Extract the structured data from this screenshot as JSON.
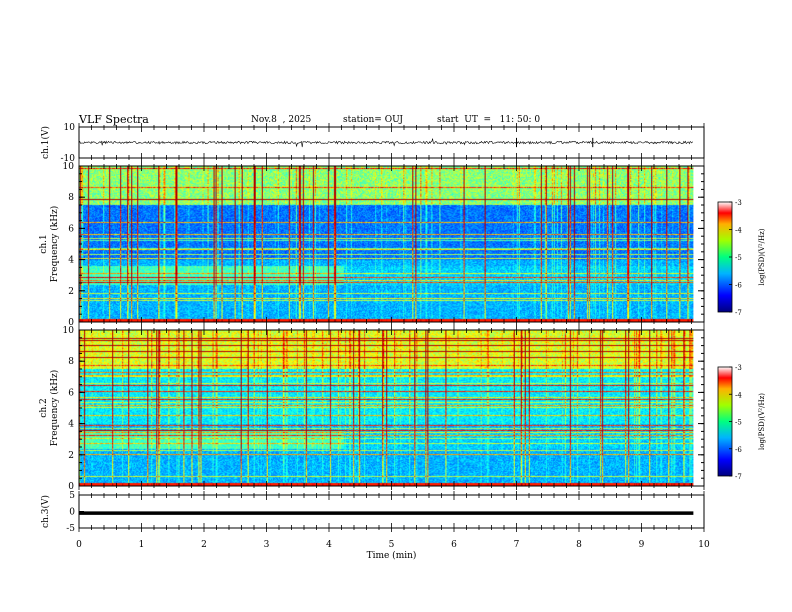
{
  "header": {
    "title": "VLF Spectra",
    "date": "Nov.8  , 2025",
    "station": "station= OUJ",
    "start": "start  UT  =   11: 50: 0"
  },
  "chart_data": [
    {
      "type": "line",
      "name": "ch1-waveform",
      "ylabel": "ch.1(V)",
      "ylim": [
        -10,
        10
      ],
      "yticks": [
        "10",
        "-10"
      ],
      "baseline": 0,
      "series": [
        {
          "name": "ch.1",
          "description": "noisy waveform near 0 V with spikes near 7.0, 8.2 min"
        }
      ]
    },
    {
      "type": "heatmap",
      "name": "ch1-spectrogram",
      "ylabel_top": "ch.1",
      "ylabel": "Frequency (kHz)",
      "ylim": [
        0,
        10
      ],
      "yticks": [
        "0",
        "2",
        "4",
        "6",
        "8",
        "10"
      ],
      "xlim": [
        0,
        10
      ],
      "data_extent_min": 9.83,
      "intensity": "medium",
      "colorbar": {
        "label": "log(PSD)(V²/Hz)",
        "min": -7,
        "max": -3,
        "ticks": [
          "-3",
          "-4",
          "-5",
          "-6",
          "-7"
        ]
      }
    },
    {
      "type": "heatmap",
      "name": "ch2-spectrogram",
      "ylabel_top": "ch.2",
      "ylabel": "Frequency (kHz)",
      "ylim": [
        0,
        10
      ],
      "yticks": [
        "0",
        "2",
        "4",
        "6",
        "8",
        "10"
      ],
      "xlim": [
        0,
        10
      ],
      "data_extent_min": 9.83,
      "intensity": "high",
      "colorbar": {
        "label": "log(PSD)(V²/Hz)",
        "min": -7,
        "max": -3,
        "ticks": [
          "-3",
          "-4",
          "-5",
          "-6",
          "-7"
        ]
      }
    },
    {
      "type": "line",
      "name": "ch3-waveform",
      "ylabel": "ch.3(V)",
      "ylim": [
        -5,
        5
      ],
      "yticks": [
        "5",
        "0",
        "-5"
      ],
      "series": [
        {
          "name": "ch.3",
          "constant": -0.5
        }
      ]
    }
  ],
  "xaxis": {
    "label": "Time  (min)",
    "ticks": [
      "0",
      "1",
      "2",
      "3",
      "4",
      "5",
      "6",
      "7",
      "8",
      "9",
      "10"
    ],
    "xlim": [
      0,
      10
    ]
  }
}
